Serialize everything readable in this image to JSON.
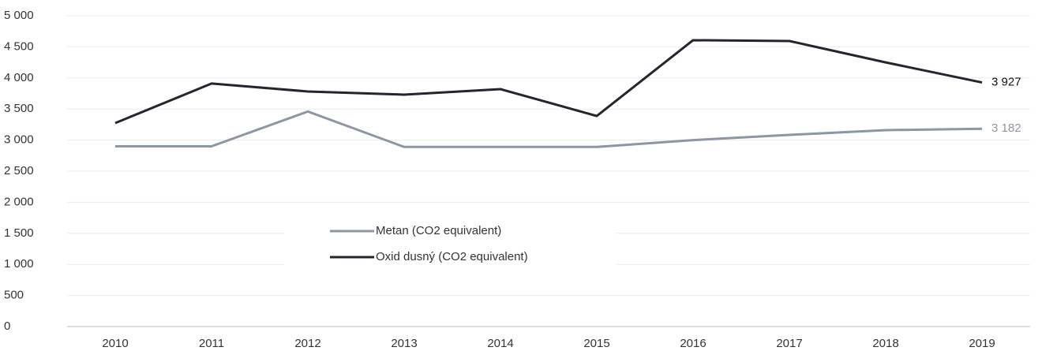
{
  "chart_data": {
    "type": "line",
    "categories": [
      "2010",
      "2011",
      "2012",
      "2013",
      "2014",
      "2015",
      "2016",
      "2017",
      "2018",
      "2019"
    ],
    "series": [
      {
        "name": "Metan (CO2 equivalent)",
        "color": "#8c96a6",
        "values": [
          2900,
          2900,
          3460,
          2890,
          2890,
          2890,
          3000,
          3084,
          3160,
          3182
        ],
        "value_labels": [
          null,
          null,
          null,
          null,
          null,
          null,
          null,
          null,
          null,
          "3 182"
        ]
      },
      {
        "name": "Oxid dusný (CO2 equivalent)",
        "color": "#22262e",
        "values": [
          3274,
          3910,
          3782,
          3731,
          3820,
          3388,
          4607,
          4594,
          4250,
          3927
        ],
        "value_labels": [
          null,
          null,
          null,
          null,
          null,
          null,
          null,
          null,
          null,
          "3 927"
        ]
      }
    ],
    "ylim": [
      0,
      5000
    ],
    "yticks": [
      0,
      500,
      {
        "value": 1000,
        "label": "1 000"
      },
      {
        "value": 1500,
        "label": "1 500"
      },
      {
        "value": 2000,
        "label": "2 000"
      },
      {
        "value": 2500,
        "label": "2 500"
      },
      {
        "value": 3000,
        "label": "3 000"
      },
      {
        "value": 3500,
        "label": "3 500"
      },
      {
        "value": 4000,
        "label": "4 000"
      },
      {
        "value": 4500,
        "label": "4 500"
      },
      {
        "value": 5000,
        "label": "5 000"
      }
    ],
    "grid": true,
    "legend": "center-left"
  }
}
